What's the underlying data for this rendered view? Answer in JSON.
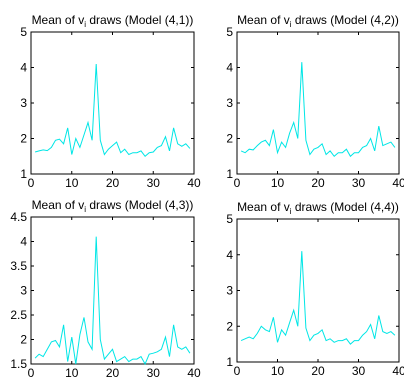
{
  "chart_data": [
    {
      "type": "line",
      "title_prefix": "Mean of v",
      "title_subscript": "i",
      "title_suffix": " draws (Model (4,1))",
      "xlim": [
        0,
        40
      ],
      "ylim": [
        1,
        5
      ],
      "xticks": [
        "0",
        "10",
        "20",
        "30",
        "40"
      ],
      "yticks": [
        "1",
        "2",
        "3",
        "4",
        "5"
      ],
      "line_color": "#00e6e6",
      "x": [
        1,
        2,
        3,
        4,
        5,
        6,
        7,
        8,
        9,
        10,
        11,
        12,
        13,
        14,
        15,
        16,
        17,
        18,
        19,
        20,
        21,
        22,
        23,
        24,
        25,
        26,
        27,
        28,
        29,
        30,
        31,
        32,
        33,
        34,
        35,
        36,
        37,
        38,
        39
      ],
      "values": [
        1.62,
        1.65,
        1.68,
        1.66,
        1.75,
        1.95,
        1.98,
        1.85,
        2.3,
        1.55,
        2.0,
        1.75,
        2.1,
        2.45,
        1.95,
        4.1,
        1.95,
        1.55,
        1.7,
        1.8,
        1.9,
        1.6,
        1.7,
        1.55,
        1.6,
        1.6,
        1.65,
        1.5,
        1.6,
        1.62,
        1.75,
        1.8,
        2.05,
        1.65,
        2.3,
        1.85,
        1.78,
        1.85,
        1.72
      ]
    },
    {
      "type": "line",
      "title_prefix": "Mean of v",
      "title_subscript": "i",
      "title_suffix": " draws (Model (4,2))",
      "xlim": [
        0,
        40
      ],
      "ylim": [
        1,
        5
      ],
      "xticks": [
        "0",
        "10",
        "20",
        "30",
        "40"
      ],
      "yticks": [
        "1",
        "2",
        "3",
        "4",
        "5"
      ],
      "line_color": "#00e6e6",
      "x": [
        1,
        2,
        3,
        4,
        5,
        6,
        7,
        8,
        9,
        10,
        11,
        12,
        13,
        14,
        15,
        16,
        17,
        18,
        19,
        20,
        21,
        22,
        23,
        24,
        25,
        26,
        27,
        28,
        29,
        30,
        31,
        32,
        33,
        34,
        35,
        36,
        37,
        38,
        39
      ],
      "values": [
        1.65,
        1.6,
        1.7,
        1.68,
        1.8,
        1.9,
        1.95,
        1.8,
        2.25,
        1.6,
        1.9,
        1.75,
        2.15,
        2.45,
        2.0,
        4.15,
        1.95,
        1.55,
        1.7,
        1.75,
        1.85,
        1.55,
        1.65,
        1.5,
        1.6,
        1.6,
        1.7,
        1.5,
        1.6,
        1.6,
        1.75,
        1.8,
        2.0,
        1.65,
        2.35,
        1.8,
        1.85,
        1.9,
        1.75
      ]
    },
    {
      "type": "line",
      "title_prefix": "Mean of v",
      "title_subscript": "i",
      "title_suffix": " draws (Model (4,3))",
      "xlim": [
        0,
        40
      ],
      "ylim": [
        1.5,
        4.5
      ],
      "xticks": [
        "0",
        "10",
        "20",
        "30",
        "40"
      ],
      "yticks": [
        "1.5",
        "2",
        "2.5",
        "3",
        "3.5",
        "4",
        "4.5"
      ],
      "line_color": "#00e6e6",
      "x": [
        1,
        2,
        3,
        4,
        5,
        6,
        7,
        8,
        9,
        10,
        11,
        12,
        13,
        14,
        15,
        16,
        17,
        18,
        19,
        20,
        21,
        22,
        23,
        24,
        25,
        26,
        27,
        28,
        29,
        30,
        31,
        32,
        33,
        34,
        35,
        36,
        37,
        38,
        39
      ],
      "values": [
        1.62,
        1.7,
        1.65,
        1.8,
        1.95,
        1.98,
        1.85,
        2.3,
        1.55,
        2.05,
        1.5,
        2.1,
        2.45,
        1.95,
        1.8,
        4.1,
        2.0,
        1.6,
        1.7,
        1.8,
        1.55,
        1.6,
        1.65,
        1.55,
        1.6,
        1.6,
        1.65,
        1.5,
        1.7,
        1.72,
        1.75,
        1.8,
        2.05,
        1.65,
        2.3,
        1.85,
        1.8,
        1.85,
        1.72
      ]
    },
    {
      "type": "line",
      "title_prefix": "Mean of v",
      "title_subscript": "i",
      "title_suffix": " draws (Model (4,4))",
      "xlim": [
        0,
        40
      ],
      "ylim": [
        1,
        5
      ],
      "xticks": [
        "0",
        "10",
        "20",
        "30",
        "40"
      ],
      "yticks": [
        "1",
        "2",
        "3",
        "4",
        "5"
      ],
      "line_color": "#00e6e6",
      "x": [
        1,
        2,
        3,
        4,
        5,
        6,
        7,
        8,
        9,
        10,
        11,
        12,
        13,
        14,
        15,
        16,
        17,
        18,
        19,
        20,
        21,
        22,
        23,
        24,
        25,
        26,
        27,
        28,
        29,
        30,
        31,
        32,
        33,
        34,
        35,
        36,
        37,
        38,
        39
      ],
      "values": [
        1.6,
        1.65,
        1.7,
        1.65,
        1.8,
        2.0,
        1.9,
        1.85,
        2.25,
        1.55,
        1.9,
        1.75,
        2.1,
        2.45,
        2.0,
        4.1,
        1.95,
        1.6,
        1.75,
        1.8,
        1.9,
        1.6,
        1.65,
        1.55,
        1.6,
        1.6,
        1.65,
        1.5,
        1.6,
        1.6,
        1.75,
        1.85,
        2.05,
        1.65,
        2.3,
        1.85,
        1.8,
        1.85,
        1.75
      ]
    }
  ]
}
